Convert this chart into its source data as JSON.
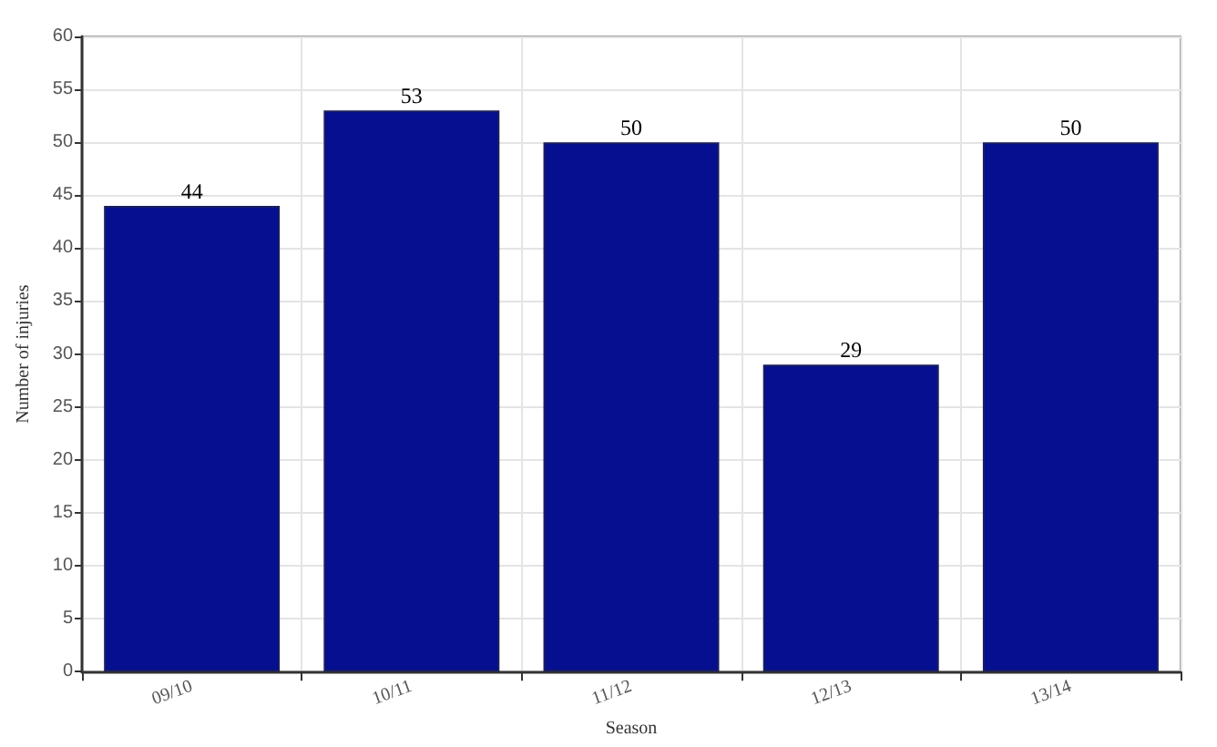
{
  "chart_data": {
    "type": "bar",
    "xlabel": "Season",
    "ylabel": "Number of injuries",
    "categories": [
      "09/10",
      "10/11",
      "11/12",
      "12/13",
      "13/14"
    ],
    "values": [
      44,
      53,
      50,
      29,
      50
    ],
    "color": "#050f8f",
    "ylim": [
      0,
      60
    ],
    "yticks": [
      0,
      5,
      10,
      15,
      20,
      25,
      30,
      35,
      40,
      45,
      50,
      55,
      60
    ],
    "grid": true,
    "data_labels": true
  }
}
